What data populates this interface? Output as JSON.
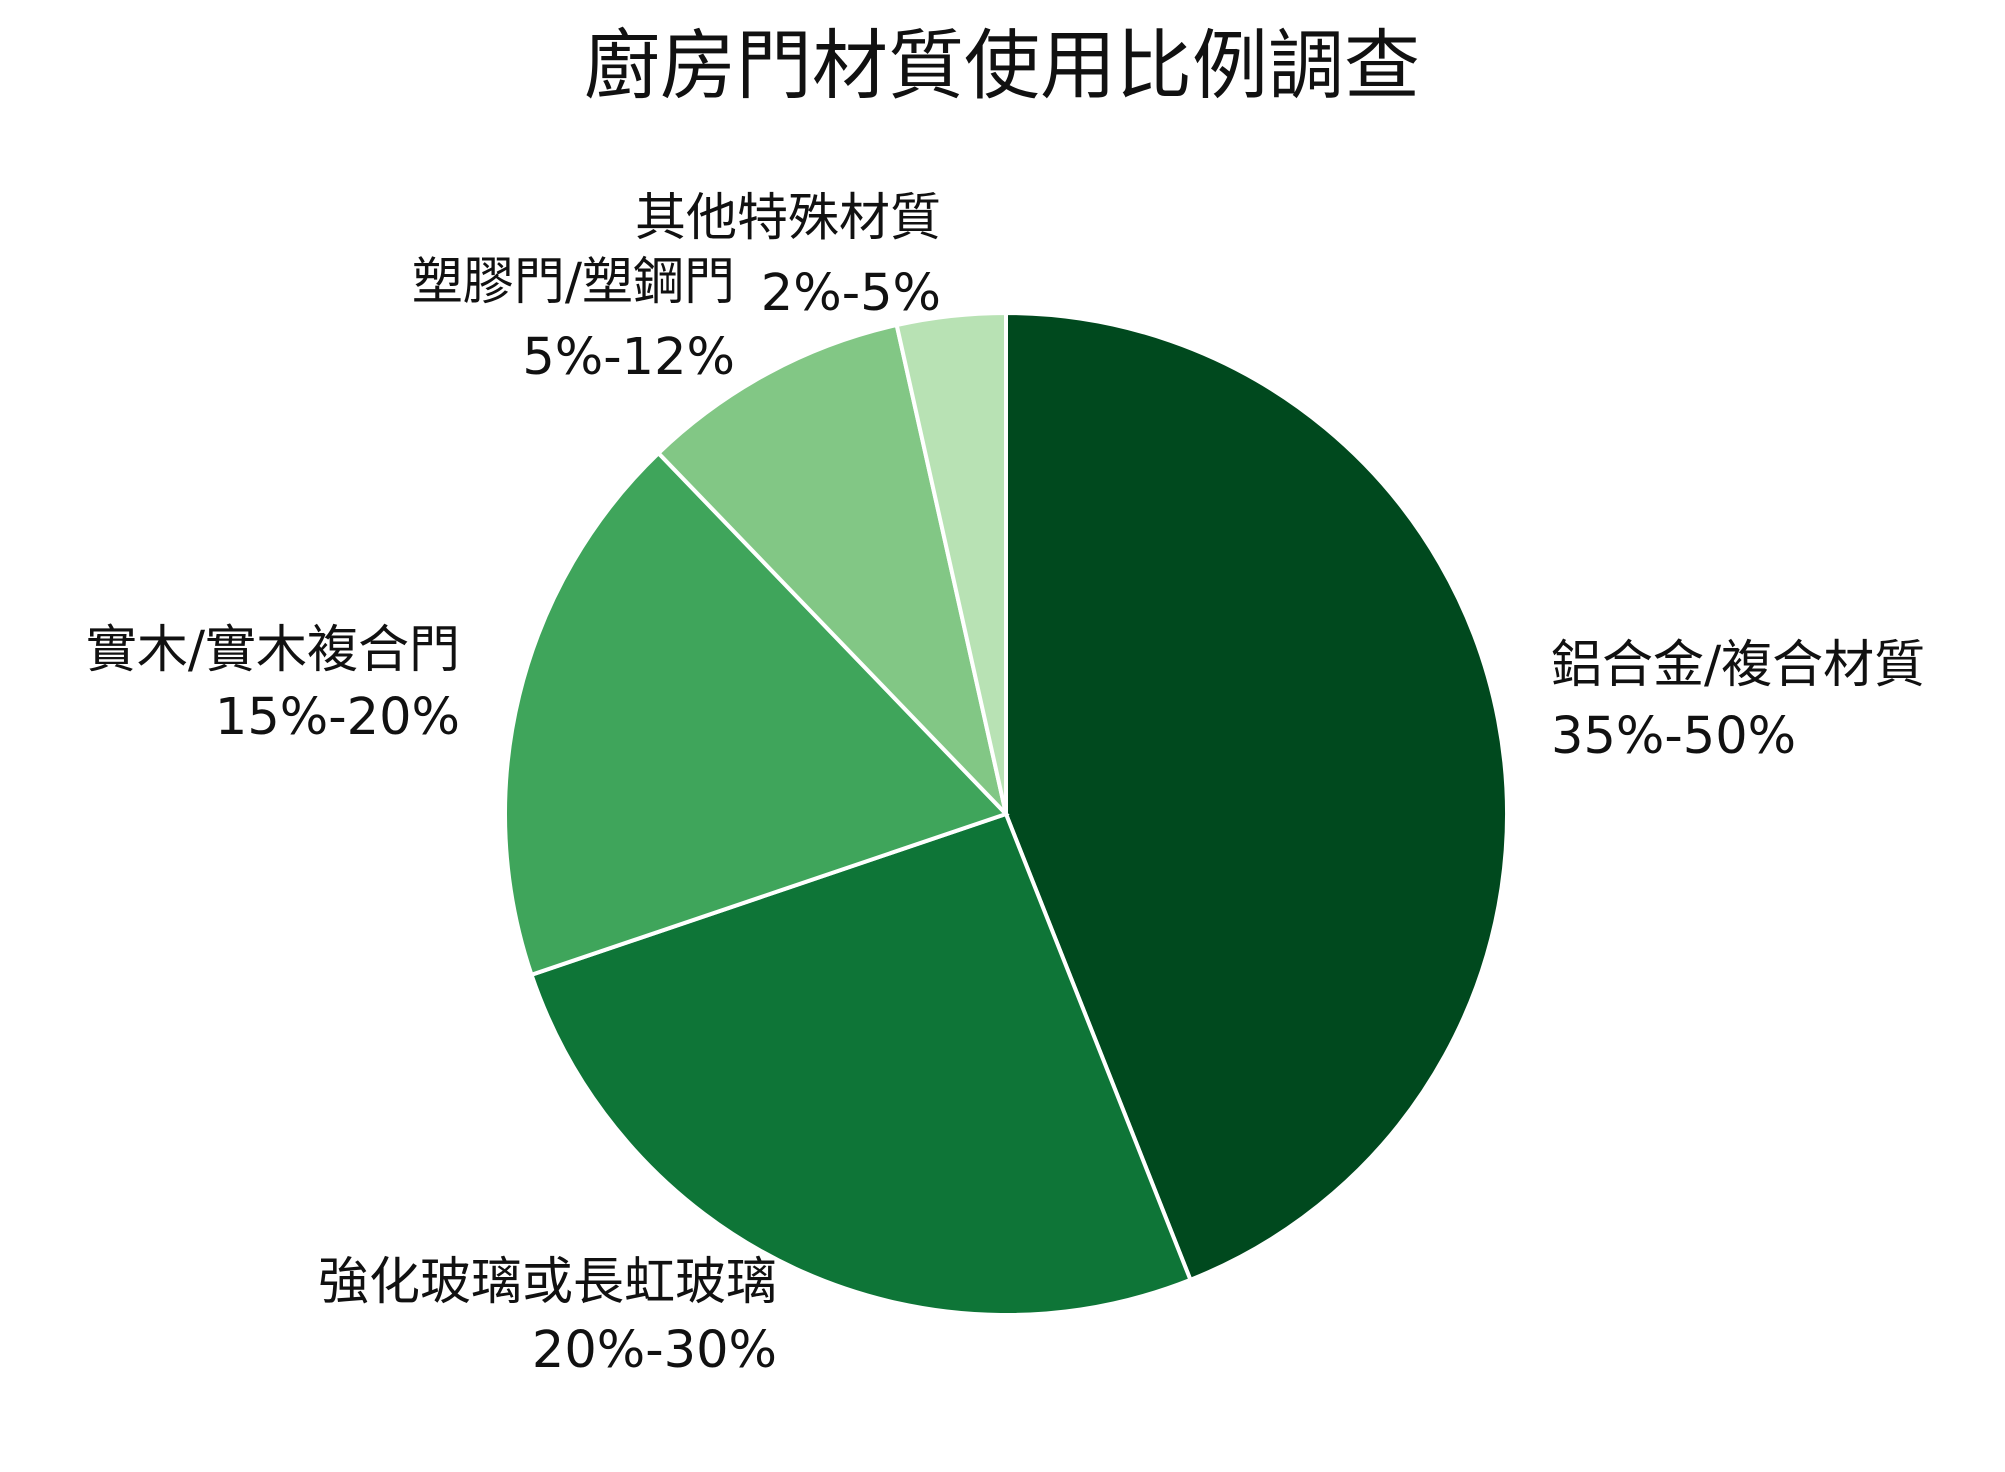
{
  "chart_data": {
    "type": "pie",
    "title": "廚房門材質使用比例調查",
    "categories": [
      "鋁合金/複合材質",
      "強化玻璃或長虹玻璃",
      "實木/實木複合門",
      "塑膠門/塑鋼門",
      "其他特殊材質"
    ],
    "ranges": [
      "35%-50%",
      "20%-30%",
      "15%-20%",
      "5%-12%",
      "2%-5%"
    ],
    "values": [
      44,
      25.8,
      18,
      8.7,
      3.5
    ],
    "colors": [
      "#00491e",
      "#0e7537",
      "#3fa55b",
      "#82c785",
      "#b8e2b4"
    ]
  }
}
